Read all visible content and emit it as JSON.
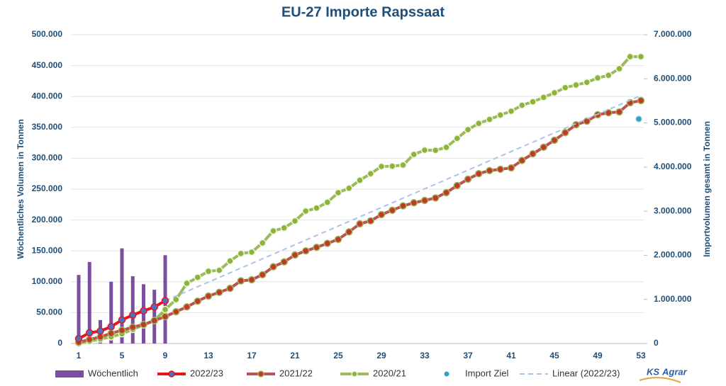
{
  "chart_data": {
    "type": "combo",
    "title": "EU-27 Importe Rapssaat",
    "y_label": "Wöchentliches Volumen in Tonnen",
    "y2_label": "Importvolumen gesamt in Tonnen",
    "categories": [
      1,
      null,
      null,
      null,
      5,
      null,
      null,
      null,
      9,
      null,
      null,
      null,
      13,
      null,
      null,
      null,
      17,
      null,
      null,
      null,
      21,
      null,
      null,
      null,
      25,
      null,
      null,
      null,
      29,
      null,
      null,
      null,
      33,
      null,
      null,
      null,
      37,
      null,
      null,
      null,
      41,
      null,
      null,
      null,
      45,
      null,
      null,
      null,
      49,
      null,
      null,
      null,
      53
    ],
    "ylim": [
      0,
      500000
    ],
    "yticks": [
      0,
      {
        "value": 50000,
        "label": "50.000"
      },
      {
        "value": 100000,
        "label": "100.000"
      },
      {
        "value": 150000,
        "label": "150.000"
      },
      {
        "value": 200000,
        "label": "200.000"
      },
      {
        "value": 250000,
        "label": "250.000"
      },
      {
        "value": 300000,
        "label": "300.000"
      },
      {
        "value": 350000,
        "label": "350.000"
      },
      {
        "value": 400000,
        "label": "400.000"
      },
      {
        "value": 450000,
        "label": "450.000"
      },
      {
        "value": 500000,
        "label": "500.000"
      }
    ],
    "y2lim": [
      0,
      7000000
    ],
    "y2ticks": [
      0,
      {
        "value": 1000000,
        "label": "1.000.000"
      },
      {
        "value": 2000000,
        "label": "2.000.000"
      },
      {
        "value": 3000000,
        "label": "3.000.000"
      },
      {
        "value": 4000000,
        "label": "4.000.000"
      },
      {
        "value": 5000000,
        "label": "5.000.000"
      },
      {
        "value": 6000000,
        "label": "6.000.000"
      },
      {
        "value": 7000000,
        "label": "7.000.000"
      }
    ],
    "grid": true,
    "legend": "bottom",
    "series": [
      {
        "name": "Wöchentlich",
        "kind": "bar",
        "color": "#7b4fa0",
        "values": [
          111000,
          132000,
          38000,
          100000,
          154000,
          109000,
          96000,
          87000,
          143000,
          null,
          null,
          null,
          null,
          null,
          null,
          null,
          null,
          null,
          null,
          null,
          null,
          null,
          null,
          null,
          null,
          null,
          null,
          null,
          null,
          null,
          null,
          null,
          null,
          null,
          null,
          null,
          null,
          null,
          null,
          null,
          null,
          null,
          null,
          null,
          null,
          null,
          null,
          null,
          null,
          null,
          null,
          null,
          null
        ]
      },
      {
        "name": "2020/21",
        "kind": "line",
        "axis": "y2",
        "color": "#9bbb59",
        "marker_color": "#8db33a",
        "marker_stroke": "#eef5e0",
        "values": [
          0,
          50000,
          100000,
          150000,
          220000,
          320000,
          420000,
          520000,
          770000,
          996000,
          1365000,
          1500000,
          1637000,
          1660000,
          1870000,
          2040000,
          2071000,
          2280000,
          2553000,
          2620000,
          2777000,
          3002000,
          3070000,
          3200000,
          3420000,
          3520000,
          3700000,
          3850000,
          4014000,
          4020000,
          4046000,
          4287000,
          4383000,
          4380000,
          4447000,
          4650000,
          4849000,
          4990000,
          5080000,
          5180000,
          5266000,
          5400000,
          5480000,
          5580000,
          5683000,
          5800000,
          5860000,
          5920000,
          6020000,
          6080000,
          6229000,
          6502000,
          6502000
        ]
      },
      {
        "name": "2021/22",
        "kind": "line",
        "axis": "y2",
        "color": "#c0504d",
        "marker_color": "#c0392b",
        "marker_stroke": "#9bbb59",
        "values": [
          30000,
          90000,
          150000,
          230000,
          300000,
          370000,
          430000,
          520000,
          610000,
          720000,
          830000,
          960000,
          1076000,
          1160000,
          1250000,
          1420000,
          1445000,
          1560000,
          1740000,
          1850000,
          2007000,
          2100000,
          2180000,
          2270000,
          2360000,
          2530000,
          2713000,
          2780000,
          2922000,
          3020000,
          3120000,
          3190000,
          3243000,
          3300000,
          3420000,
          3580000,
          3725000,
          3850000,
          3920000,
          3950000,
          3981000,
          4150000,
          4300000,
          4450000,
          4608000,
          4780000,
          4960000,
          5040000,
          5186000,
          5230000,
          5250000,
          5458000,
          5507000
        ]
      },
      {
        "name": "Linear (2022/23)",
        "kind": "dash",
        "axis": "y2",
        "color": "#a9c4e8",
        "values": [
          null,
          null,
          null,
          null,
          null,
          null,
          null,
          null,
          970000,
          1076000,
          1181000,
          1287000,
          1393000,
          1498000,
          1604000,
          1710000,
          1815000,
          1921000,
          2027000,
          2133000,
          2238000,
          2344000,
          2450000,
          2555000,
          2661000,
          2767000,
          2872000,
          2978000,
          3084000,
          3189000,
          3295000,
          3401000,
          3507000,
          3612000,
          3718000,
          3824000,
          3929000,
          4035000,
          4141000,
          4246000,
          4352000,
          4458000,
          4564000,
          4669000,
          4775000,
          4881000,
          4986000,
          5092000,
          5198000,
          5303000,
          5409000,
          5515000,
          5620000
        ]
      },
      {
        "name": "2022/23",
        "kind": "line",
        "axis": "y2",
        "color": "#e8141c",
        "marker_color": "#4f6fbf",
        "marker_stroke": "#e8141c",
        "values": [
          111000,
          243000,
          281000,
          381000,
          535000,
          644000,
          740000,
          827000,
          970000,
          null,
          null,
          null,
          null,
          null,
          null,
          null,
          null,
          null,
          null,
          null,
          null,
          null,
          null,
          null,
          null,
          null,
          null,
          null,
          null,
          null,
          null,
          null,
          null,
          null,
          null,
          null,
          null,
          null,
          null,
          null,
          null,
          null,
          null,
          null,
          null,
          null,
          null,
          null,
          null,
          null,
          null,
          null,
          null
        ]
      },
      {
        "name": "Import Ziel",
        "kind": "dot",
        "axis": "y2",
        "color": "#31a2c8",
        "values": [
          null,
          null,
          null,
          null,
          null,
          null,
          null,
          null,
          null,
          null,
          null,
          null,
          null,
          null,
          null,
          null,
          null,
          null,
          null,
          null,
          null,
          null,
          null,
          null,
          null,
          null,
          null,
          null,
          null,
          null,
          null,
          null,
          null,
          null,
          null,
          null,
          null,
          null,
          null,
          null,
          null,
          null,
          null,
          null,
          null,
          null,
          null,
          null,
          null,
          null,
          null,
          null,
          5090000
        ]
      }
    ]
  },
  "logo": {
    "left": "KS",
    "right": "Agrar"
  }
}
